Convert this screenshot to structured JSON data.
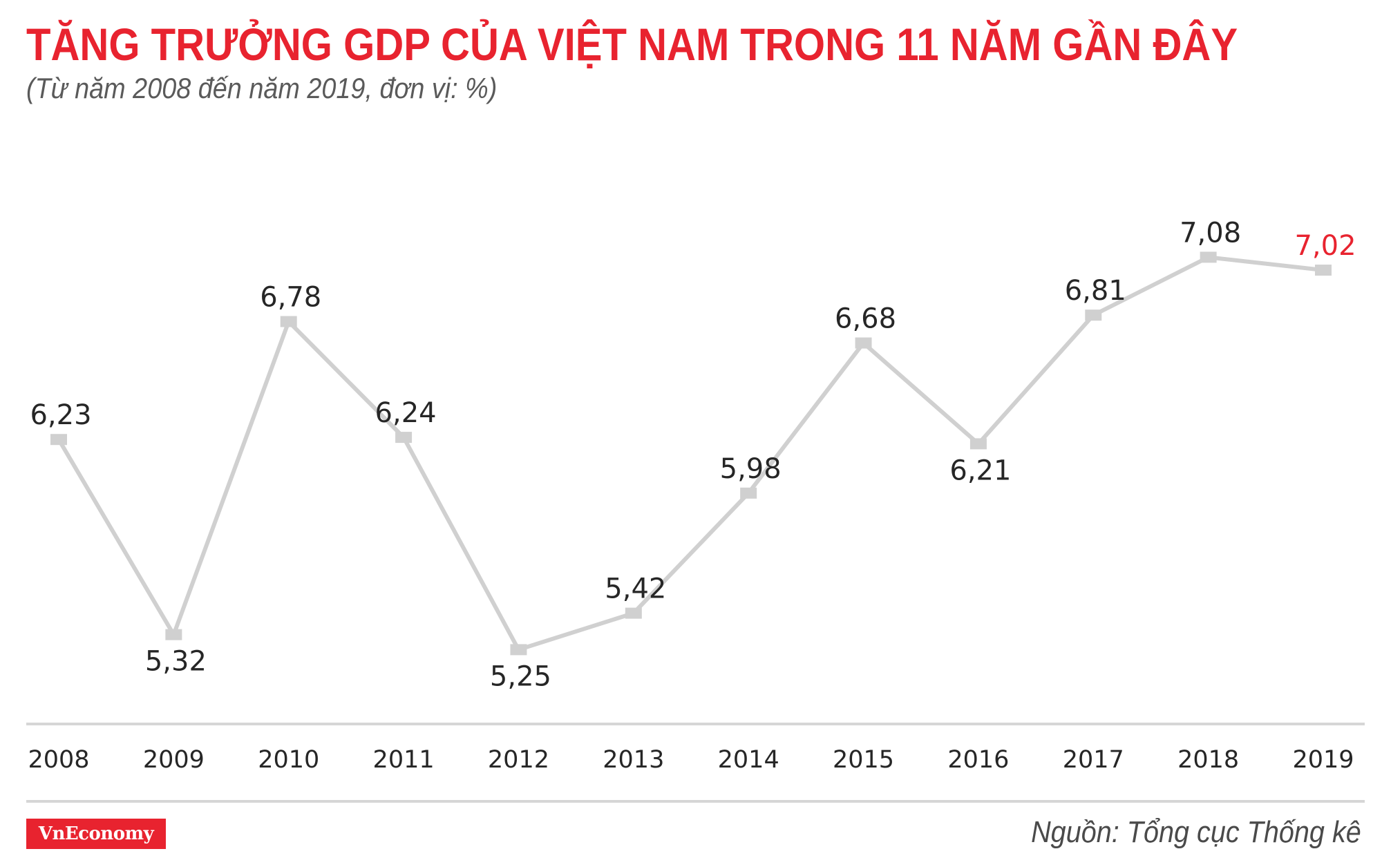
{
  "header": {
    "title": "TĂNG TRƯỞNG GDP CỦA VIỆT NAM TRONG 11 NĂM GẦN ĐÂY",
    "subtitle": "(Từ năm 2008 đến năm 2019, đơn vị: %)"
  },
  "footer": {
    "logo_text": "VnEconomy",
    "source": "Nguồn: Tổng cục Thống kê"
  },
  "colors": {
    "accent": "#e8232f",
    "line": "#d0d0d0",
    "axis": "#d6d6d6",
    "text": "#262626"
  },
  "chart_data": {
    "type": "line",
    "title": "TĂNG TRƯỞNG GDP CỦA VIỆT NAM TRONG 11 NĂM GẦN ĐÂY",
    "subtitle": "(Từ năm 2008 đến năm 2019, đơn vị: %)",
    "xlabel": "",
    "ylabel": "",
    "categories": [
      "2008",
      "2009",
      "2010",
      "2011",
      "2012",
      "2013",
      "2014",
      "2015",
      "2016",
      "2017",
      "2018",
      "2019"
    ],
    "values": [
      6.23,
      5.32,
      6.78,
      6.24,
      5.25,
      5.42,
      5.98,
      6.68,
      6.21,
      6.81,
      7.08,
      7.02
    ],
    "labels": [
      "6,23",
      "5,32",
      "6,78",
      "6,24",
      "5,25",
      "5,42",
      "5,98",
      "6,68",
      "6,21",
      "6,81",
      "7,08",
      "7,02"
    ],
    "label_positions": [
      "above",
      "below",
      "above",
      "above",
      "below",
      "above",
      "above",
      "above",
      "below",
      "above",
      "above",
      "above"
    ],
    "highlight_last": true,
    "grid": false,
    "legend": "none"
  }
}
